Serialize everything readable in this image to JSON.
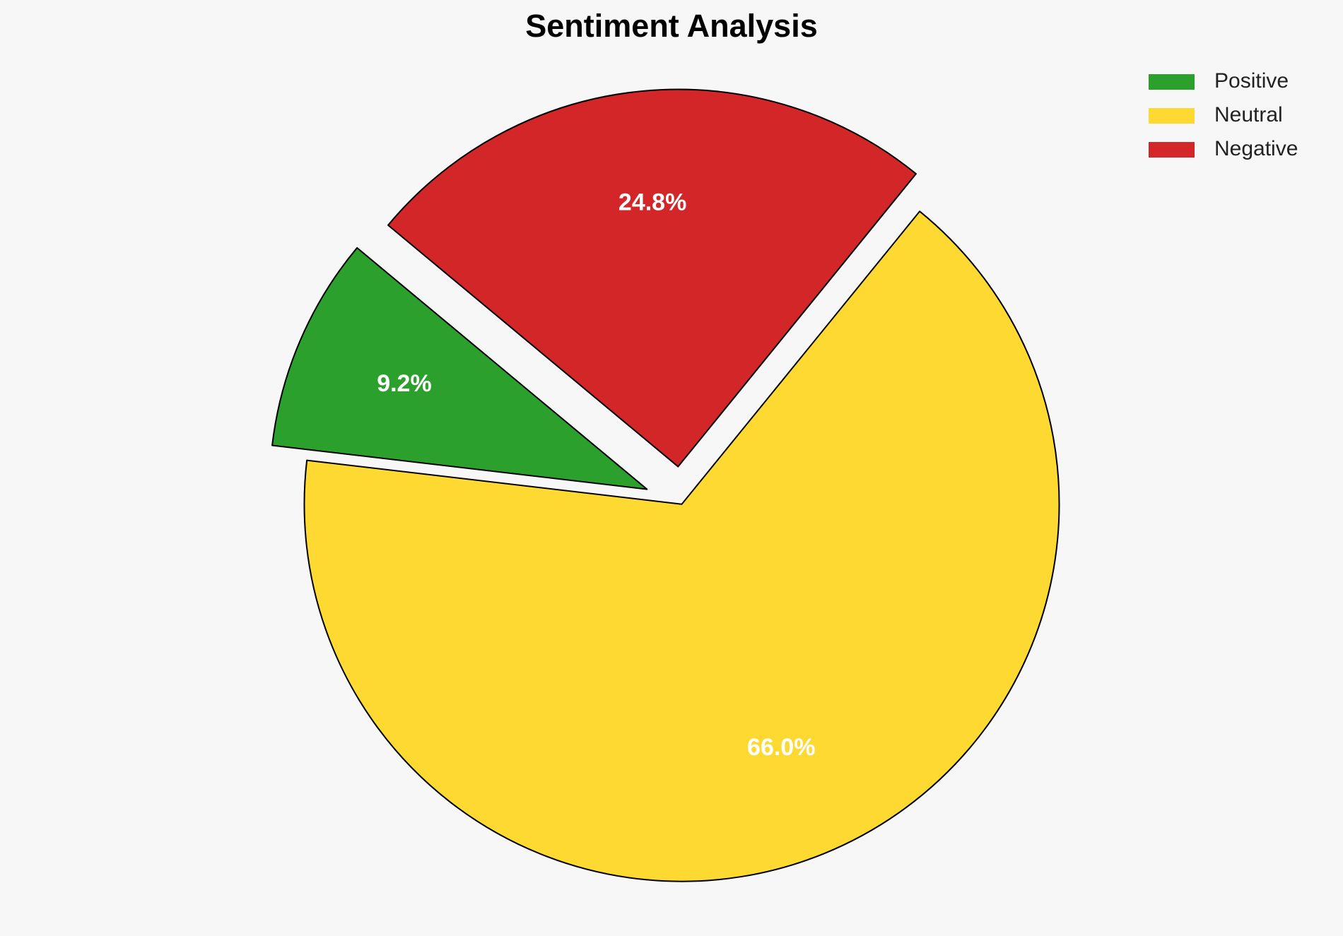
{
  "chart_data": {
    "type": "pie",
    "title": "Sentiment Analysis",
    "categories": [
      "Positive",
      "Neutral",
      "Negative"
    ],
    "values": [
      9.2,
      66.0,
      24.8
    ],
    "value_labels": [
      "9.2%",
      "66.0%",
      "24.8%"
    ],
    "colors": [
      "#2ca02c",
      "#fdd931",
      "#d32628"
    ],
    "legend": "upper right"
  }
}
